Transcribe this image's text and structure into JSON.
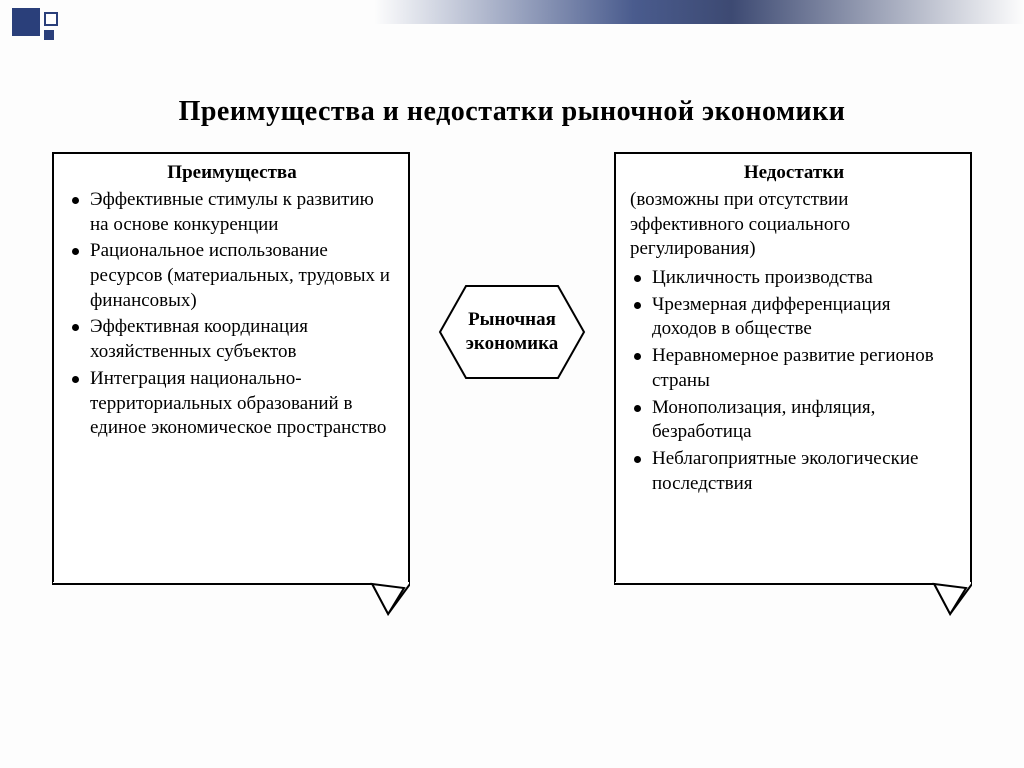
{
  "colors": {
    "border": "#000000",
    "background": "#fdfdfd",
    "accent": "#2a3f7a"
  },
  "typography": {
    "title_fontsize": 28,
    "body_fontsize": 19,
    "font_family": "Times New Roman"
  },
  "title": "Преимущества и недостатки рыночной экономики",
  "center": {
    "label": "Рыночная\nэкономика"
  },
  "left_box": {
    "heading": "Преимущества",
    "items": [
      "Эффективные стимулы к развитию на основе конку­ренции",
      "Рациональное использование ресурсов (материальных, трудовых и финансовых)",
      "Эффективная координация хозяйственных субъектов",
      "Интеграция национально-территориальных образо­ваний в единое экономиче­ское пространство"
    ]
  },
  "right_box": {
    "heading": "Недостатки",
    "subhead": "(возможны при отсутствии эффективного социального регулирования)",
    "items": [
      "Цикличность производства",
      "Чрезмерная дифференциа­ция доходов в обществе",
      "Неравномерное развитие регионов страны",
      "Монополизация, инфляция, безработица",
      "Неблагоприятные экологи­ческие последствия"
    ]
  }
}
